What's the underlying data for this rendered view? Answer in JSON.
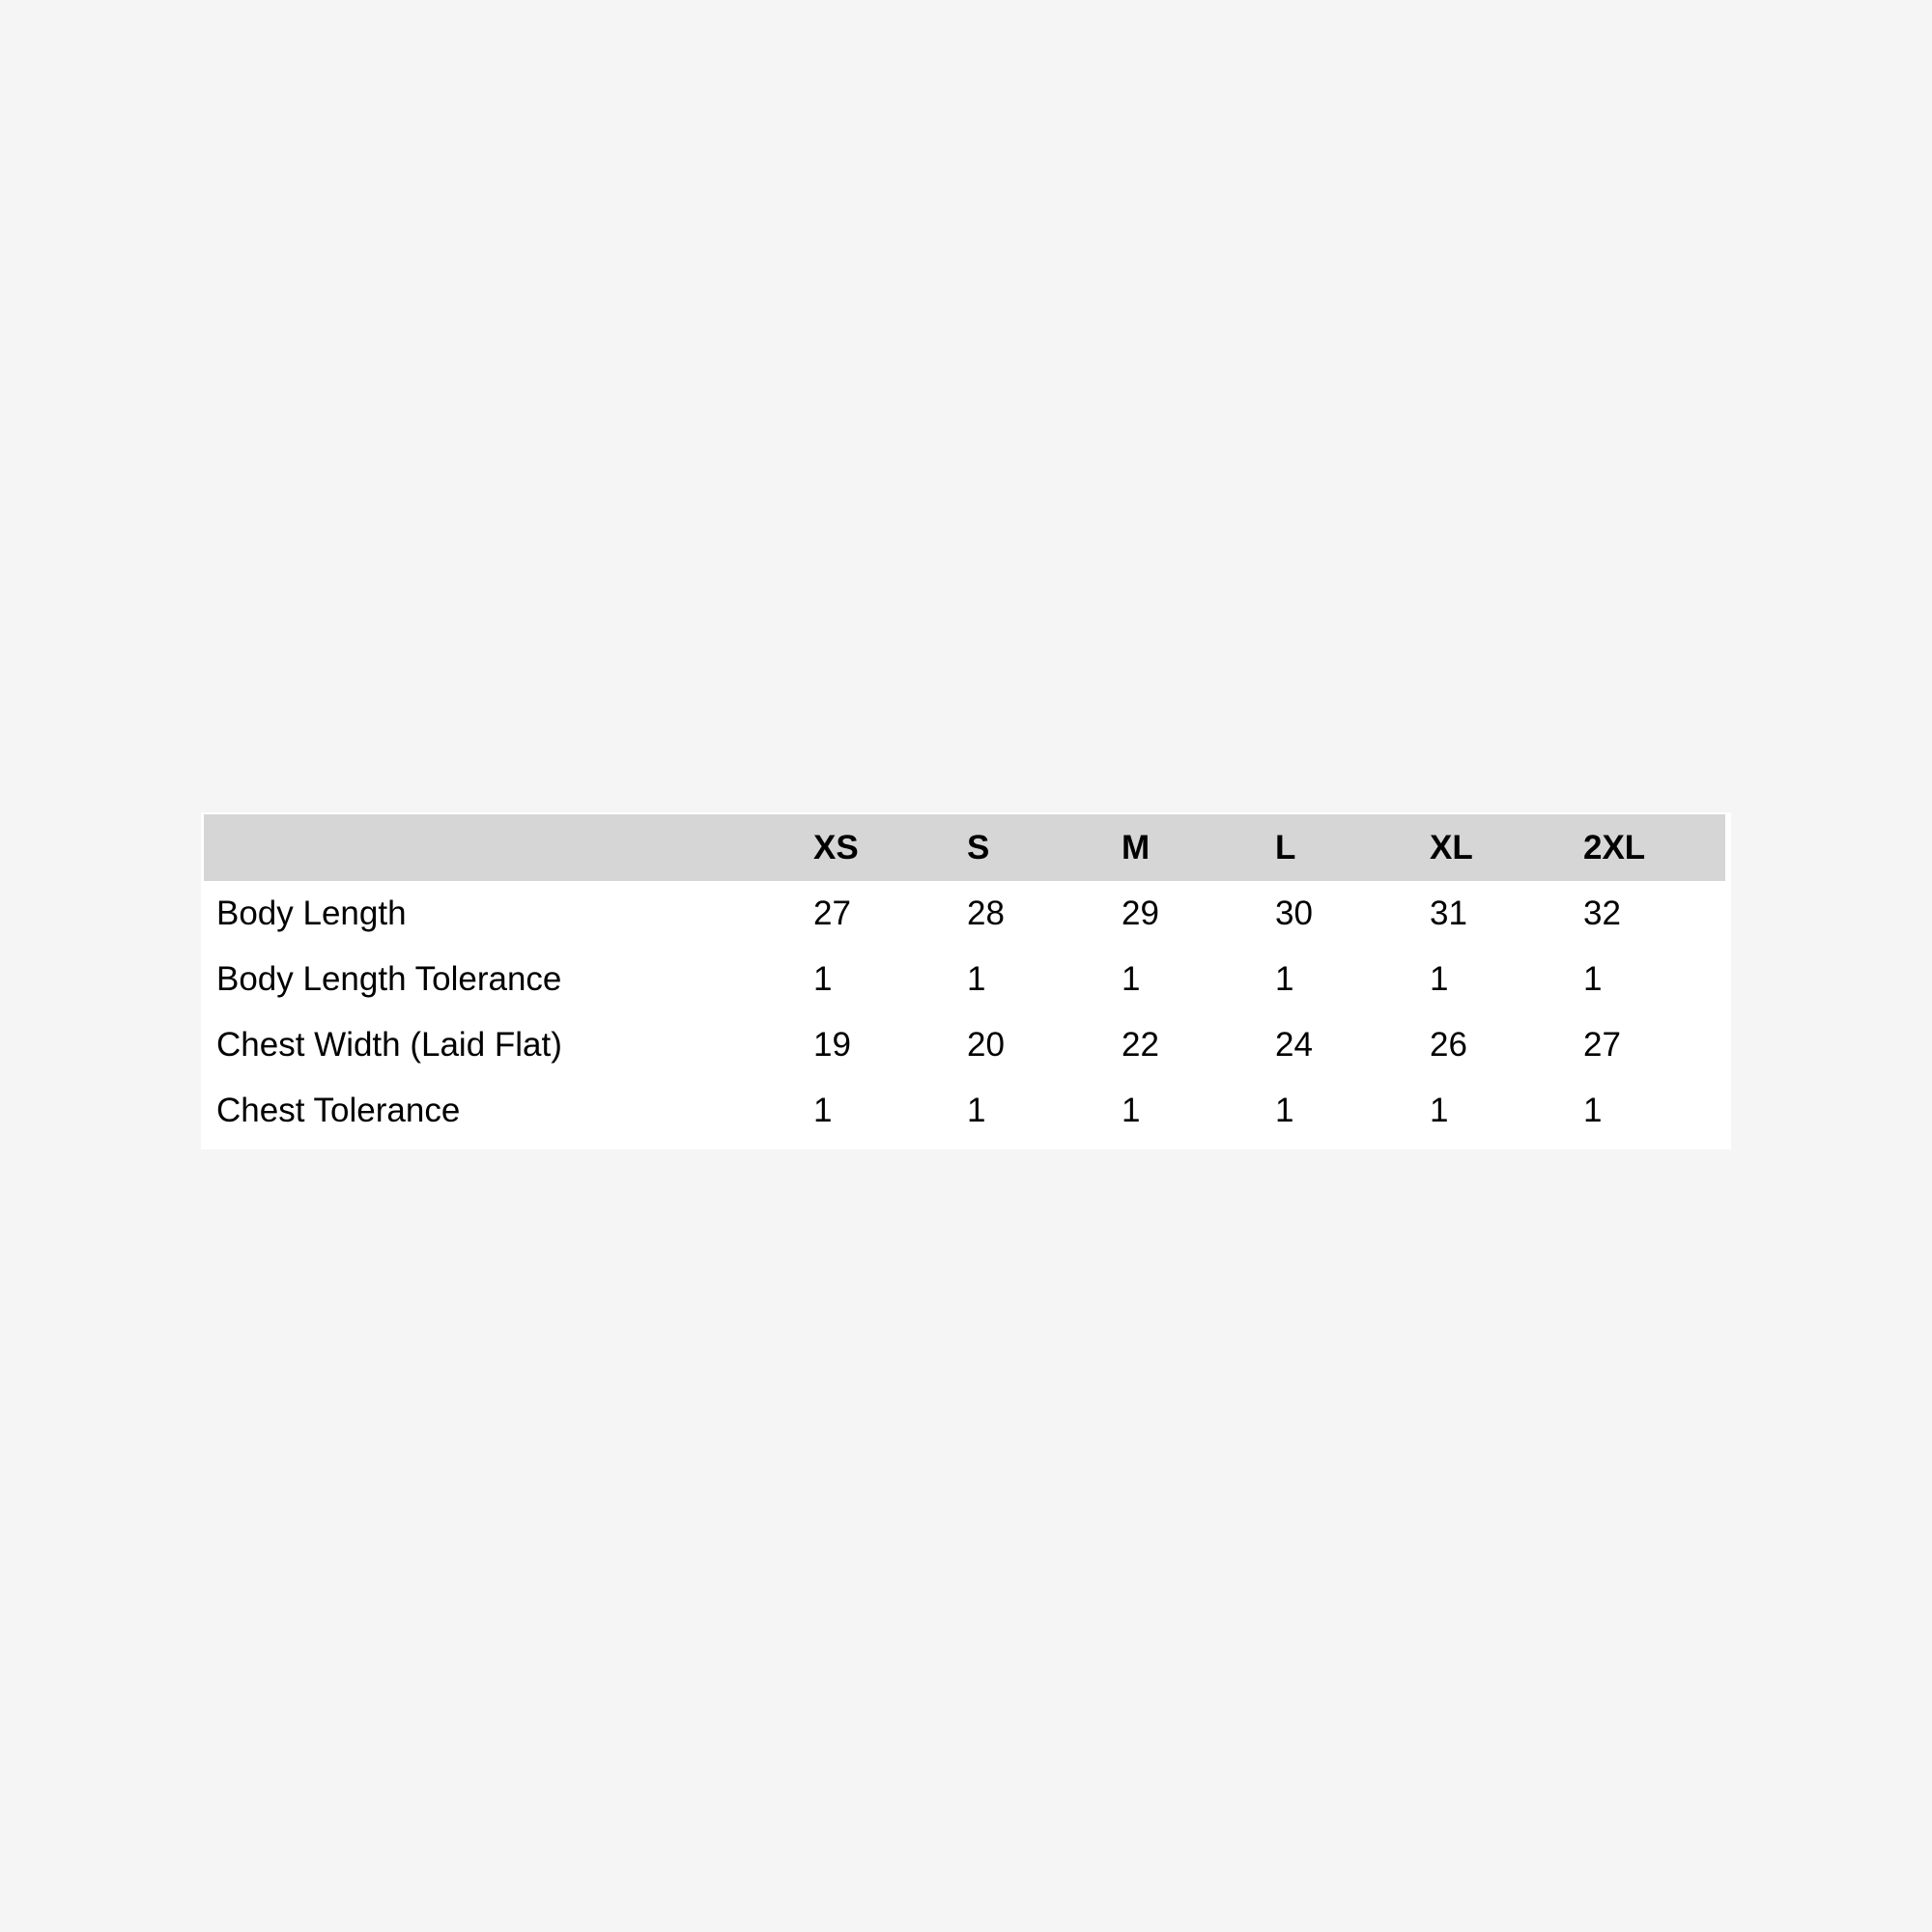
{
  "size_chart": {
    "columns": [
      "XS",
      "S",
      "M",
      "L",
      "XL",
      "2XL"
    ],
    "rows": [
      {
        "label": "Body Length",
        "values": [
          "27",
          "28",
          "29",
          "30",
          "31",
          "32"
        ]
      },
      {
        "label": "Body Length Tolerance",
        "values": [
          "1",
          "1",
          "1",
          "1",
          "1",
          "1"
        ]
      },
      {
        "label": "Chest Width (Laid Flat)",
        "values": [
          "19",
          "20",
          "22",
          "24",
          "26",
          "27"
        ]
      },
      {
        "label": "Chest Tolerance",
        "values": [
          "1",
          "1",
          "1",
          "1",
          "1",
          "1"
        ]
      }
    ]
  },
  "colors": {
    "background": "#f5f5f5",
    "header_bg": "#d6d6d6",
    "table_bg": "#ffffff"
  }
}
